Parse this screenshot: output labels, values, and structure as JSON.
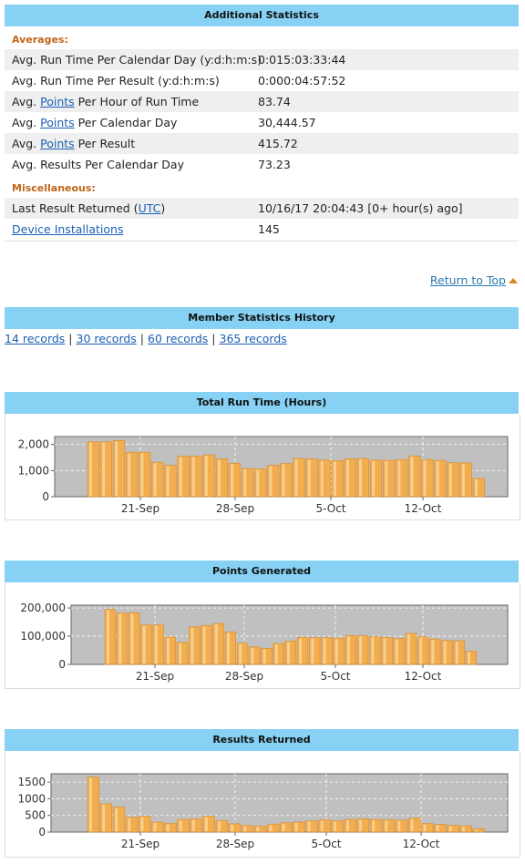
{
  "additional": {
    "header": "Additional Statistics",
    "averages_label": "Averages:",
    "rows": [
      {
        "pre": "Avg. Run Time Per Calendar Day (y:d:h:m:s)",
        "link": "",
        "post": "",
        "value": "0:015:03:33:44"
      },
      {
        "pre": "Avg. Run Time Per Result (y:d:h:m:s)",
        "link": "",
        "post": "",
        "value": "0:000:04:57:52"
      },
      {
        "pre": "Avg. ",
        "link": "Points",
        "post": " Per Hour of Run Time",
        "value": "83.74"
      },
      {
        "pre": "Avg. ",
        "link": "Points",
        "post": " Per Calendar Day",
        "value": "30,444.57"
      },
      {
        "pre": "Avg. ",
        "link": "Points",
        "post": " Per Result",
        "value": "415.72"
      },
      {
        "pre": "Avg. Results Per Calendar Day",
        "link": "",
        "post": "",
        "value": "73.23"
      }
    ],
    "misc_label": "Miscellaneous:",
    "last_result_pre": "Last Result Returned (",
    "last_result_link": "UTC",
    "last_result_post": ")",
    "last_result_value": "10/16/17 20:04:43 [0+ hour(s) ago]",
    "device_installations_label": "Device Installations",
    "device_installations_value": "145"
  },
  "return_to_top": "Return to Top",
  "history": {
    "header": "Member Statistics History",
    "records": [
      "14 records",
      "30 records",
      "60 records",
      "365 records"
    ],
    "separator": " | "
  },
  "colors": {
    "header_bg": "#87d2f4",
    "bar": "#f2ad4e",
    "plot_bg": "#c0c0c0",
    "section": "#c0661a",
    "link": "#1a5fb4"
  },
  "chart_data": [
    {
      "type": "bar",
      "title": "Total Run Time (Hours)",
      "x_ticks": [
        "21-Sep",
        "28-Sep",
        "5-Oct",
        "12-Oct"
      ],
      "y_ticks": [
        "0",
        "1,000",
        "2,000"
      ],
      "ylim": [
        0,
        2300
      ],
      "categories": [
        "Sep 16",
        "Sep 17",
        "Sep 18",
        "Sep 19",
        "Sep 20",
        "Sep 21",
        "Sep 22",
        "Sep 23",
        "Sep 24",
        "Sep 25",
        "Sep 26",
        "Sep 27",
        "Sep 28",
        "Sep 29",
        "Sep 30",
        "Oct 1",
        "Oct 2",
        "Oct 3",
        "Oct 4",
        "Oct 5",
        "Oct 6",
        "Oct 7",
        "Oct 8",
        "Oct 9",
        "Oct 10",
        "Oct 11",
        "Oct 12",
        "Oct 13",
        "Oct 14",
        "Oct 15",
        "Oct 16"
      ],
      "values": [
        2100,
        2100,
        2150,
        1700,
        1700,
        1320,
        1200,
        1550,
        1550,
        1600,
        1450,
        1280,
        1080,
        1070,
        1200,
        1270,
        1460,
        1450,
        1400,
        1380,
        1450,
        1460,
        1400,
        1390,
        1420,
        1560,
        1420,
        1390,
        1300,
        1290,
        700
      ]
    },
    {
      "type": "bar",
      "title": "Points Generated",
      "x_ticks": [
        "21-Sep",
        "28-Sep",
        "5-Oct",
        "12-Oct"
      ],
      "y_ticks": [
        "0",
        "100,000",
        "200,000"
      ],
      "ylim": [
        0,
        210000
      ],
      "categories": [
        "Sep 16",
        "Sep 17",
        "Sep 18",
        "Sep 19",
        "Sep 20",
        "Sep 21",
        "Sep 22",
        "Sep 23",
        "Sep 24",
        "Sep 25",
        "Sep 26",
        "Sep 27",
        "Sep 28",
        "Sep 29",
        "Sep 30",
        "Oct 1",
        "Oct 2",
        "Oct 3",
        "Oct 4",
        "Oct 5",
        "Oct 6",
        "Oct 7",
        "Oct 8",
        "Oct 9",
        "Oct 10",
        "Oct 11",
        "Oct 12",
        "Oct 13",
        "Oct 14",
        "Oct 15",
        "Oct 16"
      ],
      "values": [
        195000,
        182000,
        183000,
        140000,
        140000,
        97000,
        78000,
        133000,
        138000,
        145000,
        115000,
        75000,
        62000,
        57000,
        74000,
        83000,
        96000,
        95000,
        95000,
        93000,
        102000,
        102000,
        98000,
        96000,
        92000,
        110000,
        98000,
        90000,
        85000,
        84000,
        47000
      ]
    },
    {
      "type": "bar",
      "title": "Results Returned",
      "x_ticks": [
        "21-Sep",
        "28-Sep",
        "5-Oct",
        "12-Oct"
      ],
      "y_ticks": [
        "0",
        "500",
        "1000",
        "1500"
      ],
      "ylim": [
        0,
        1750
      ],
      "categories": [
        "Sep 16",
        "Sep 17",
        "Sep 18",
        "Sep 19",
        "Sep 20",
        "Sep 21",
        "Sep 22",
        "Sep 23",
        "Sep 24",
        "Sep 25",
        "Sep 26",
        "Sep 27",
        "Sep 28",
        "Sep 29",
        "Sep 30",
        "Oct 1",
        "Oct 2",
        "Oct 3",
        "Oct 4",
        "Oct 5",
        "Oct 6",
        "Oct 7",
        "Oct 8",
        "Oct 9",
        "Oct 10",
        "Oct 11",
        "Oct 12",
        "Oct 13",
        "Oct 14",
        "Oct 15",
        "Oct 16"
      ],
      "values": [
        1650,
        850,
        750,
        450,
        480,
        300,
        260,
        380,
        400,
        480,
        350,
        250,
        200,
        180,
        240,
        280,
        300,
        340,
        370,
        340,
        380,
        400,
        380,
        370,
        360,
        420,
        260,
        230,
        200,
        190,
        100
      ]
    }
  ]
}
